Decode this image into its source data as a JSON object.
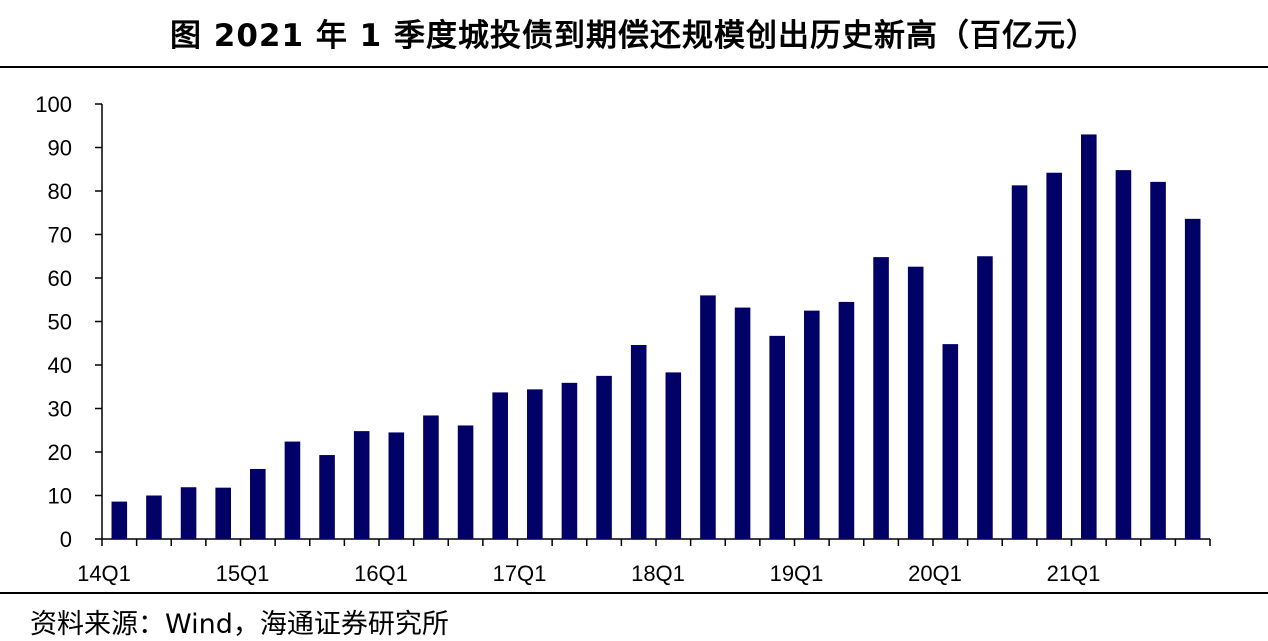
{
  "header": {
    "title": "图  2021 年 1 季度城投债到期偿还规模创出历史新高（百亿元）"
  },
  "footer": {
    "source": "资料来源：Wind，海通证券研究所"
  },
  "colors": {
    "bar": "#000066",
    "axis": "#000000"
  },
  "chart_data": {
    "type": "bar",
    "title": "图  2021 年 1 季度城投债到期偿还规模创出历史新高（百亿元）",
    "xlabel": "",
    "ylabel": "",
    "ylim": [
      0,
      100
    ],
    "yticks": [
      0,
      10,
      20,
      30,
      40,
      50,
      60,
      70,
      80,
      90,
      100
    ],
    "x_tick_labels": [
      "14Q1",
      "15Q1",
      "16Q1",
      "17Q1",
      "18Q1",
      "19Q1",
      "20Q1",
      "21Q1"
    ],
    "categories": [
      "14Q1",
      "14Q2",
      "14Q3",
      "14Q4",
      "15Q1",
      "15Q2",
      "15Q3",
      "15Q4",
      "16Q1",
      "16Q2",
      "16Q3",
      "16Q4",
      "17Q1",
      "17Q2",
      "17Q3",
      "17Q4",
      "18Q1",
      "18Q2",
      "18Q3",
      "18Q4",
      "19Q1",
      "19Q2",
      "19Q3",
      "19Q4",
      "20Q1",
      "20Q2",
      "20Q3",
      "20Q4",
      "21Q1",
      "21Q2",
      "21Q3",
      "21Q4"
    ],
    "values": [
      8.6,
      10.0,
      11.9,
      11.8,
      16.1,
      22.4,
      19.3,
      24.8,
      24.5,
      28.4,
      26.1,
      33.7,
      34.4,
      35.9,
      37.5,
      44.6,
      38.3,
      56.0,
      53.2,
      46.7,
      52.5,
      54.5,
      64.8,
      62.6,
      44.8,
      65.0,
      81.3,
      84.2,
      93.0,
      84.8,
      82.1,
      73.6
    ],
    "grid": false,
    "legend": "none"
  }
}
